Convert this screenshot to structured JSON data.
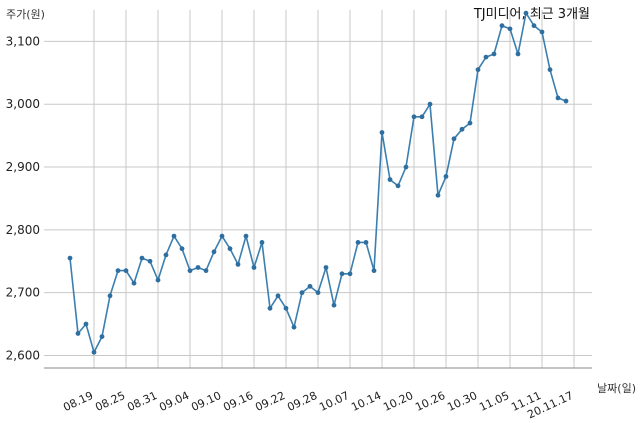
{
  "chart_data": {
    "type": "line",
    "title": "TJ미디어, 최근 3개월",
    "ylabel": "주가(원)",
    "xlabel": "날짜(일)",
    "ylim": [
      2580,
      3150
    ],
    "y_ticks": [
      2600,
      2700,
      2800,
      2900,
      3000,
      3100
    ],
    "y_tick_labels": [
      "2,600",
      "2,700",
      "2,800",
      "2,900",
      "3,000",
      "3,100"
    ],
    "x_tick_labels": [
      "08.19",
      "08.25",
      "08.31",
      "09.04",
      "09.10",
      "09.16",
      "09.22",
      "09.28",
      "10.07",
      "10.14",
      "10.20",
      "10.26",
      "10.30",
      "11.05",
      "11.11",
      "20.11.17"
    ],
    "x_tick_index": [
      3,
      7,
      11,
      15,
      19,
      23,
      27,
      31,
      35,
      39,
      43,
      47,
      51,
      55,
      59,
      63
    ],
    "grid": true,
    "line_color": "#3a7fb0",
    "marker_color": "#2f6f9f",
    "series": [
      {
        "values": [
          2755,
          2635,
          2650,
          2605,
          2630,
          2695,
          2735,
          2735,
          2715,
          2755,
          2750,
          2720,
          2760,
          2790,
          2770,
          2735,
          2740,
          2735,
          2765,
          2790,
          2770,
          2745,
          2790,
          2740,
          2780,
          2675,
          2695,
          2675,
          2645,
          2700,
          2710,
          2700,
          2740,
          2680,
          2730,
          2730,
          2780,
          2780,
          2735,
          2955,
          2880,
          2870,
          2900,
          2980,
          2980,
          3000,
          2855,
          2885,
          2945,
          2960,
          2970,
          3055,
          3075,
          3080,
          3125,
          3120,
          3080,
          3145,
          3125,
          3115,
          3055,
          3010,
          3005
        ]
      }
    ]
  }
}
